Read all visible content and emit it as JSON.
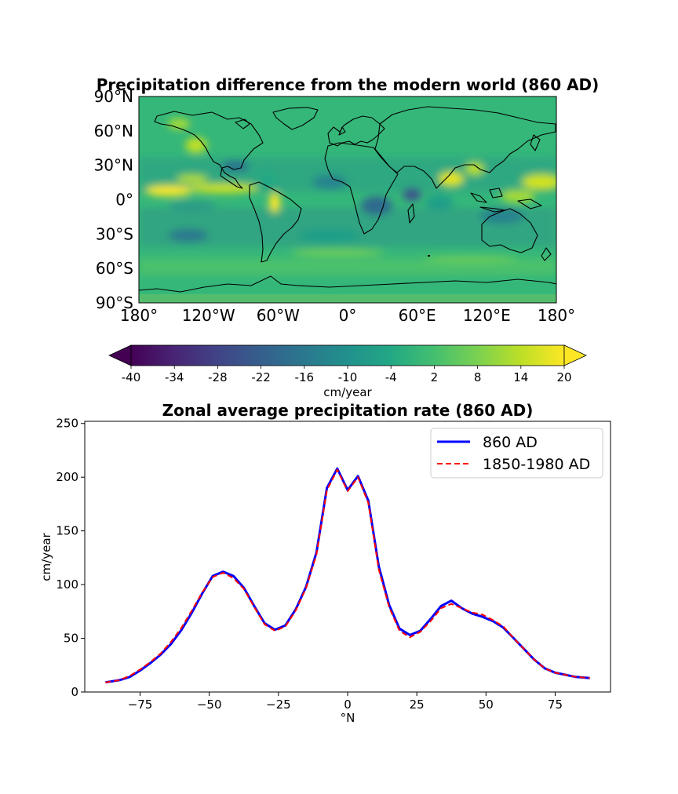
{
  "map": {
    "title": "Precipitation difference from the modern world (860 AD)",
    "lat_ticks": [
      "90°N",
      "60°N",
      "30°N",
      "0°",
      "30°S",
      "60°S",
      "90°S"
    ],
    "lon_ticks": [
      "180°",
      "120°W",
      "60°W",
      "0°",
      "60°E",
      "120°E",
      "180°"
    ],
    "colorbar": {
      "ticks": [
        "-40",
        "-34",
        "-28",
        "-22",
        "-16",
        "-10",
        "-4",
        "2",
        "8",
        "14",
        "20"
      ],
      "label": "cm/year",
      "range": [
        -40,
        20
      ],
      "colormap": "viridis",
      "extend": "both"
    }
  },
  "chart_data": {
    "type": "line",
    "title": "Zonal average precipitation rate (860 AD)",
    "xlabel": "°N",
    "ylabel": "cm/year",
    "xlim": [
      -95,
      95
    ],
    "ylim": [
      0,
      252
    ],
    "xticks": [
      -75,
      -50,
      -25,
      0,
      25,
      50,
      75
    ],
    "yticks": [
      0,
      50,
      100,
      150,
      200,
      250
    ],
    "legend_position": "top-right",
    "x": [
      -87.5,
      -82.5,
      -78.75,
      -75,
      -71.25,
      -67.5,
      -63.75,
      -60,
      -56.25,
      -52.5,
      -48.75,
      -45,
      -41.25,
      -37.5,
      -33.75,
      -30,
      -26.25,
      -22.5,
      -18.75,
      -15,
      -11.25,
      -7.5,
      -3.75,
      0,
      3.75,
      7.5,
      11.25,
      15,
      18.75,
      22.5,
      26.25,
      30,
      33.75,
      37.5,
      41.25,
      45,
      48.75,
      52.5,
      56.25,
      60,
      63.75,
      67.5,
      71.25,
      75,
      78.75,
      82.5,
      87.5
    ],
    "series": [
      {
        "name": "860 AD",
        "color": "#0000ff",
        "style": "solid",
        "values": [
          9,
          11,
          14,
          20,
          27,
          35,
          45,
          58,
          74,
          92,
          108,
          112,
          108,
          97,
          80,
          64,
          58,
          62,
          77,
          98,
          130,
          190,
          208,
          188,
          201,
          178,
          117,
          81,
          59,
          53,
          57,
          68,
          80,
          85,
          78,
          73,
          70,
          66,
          60,
          50,
          40,
          30,
          22,
          18,
          16,
          14,
          13
        ]
      },
      {
        "name": "1850-1980 AD",
        "color": "#ff0000",
        "style": "dashed",
        "values": [
          9,
          11,
          15,
          21,
          28,
          36,
          47,
          60,
          76,
          93,
          107,
          111,
          106,
          96,
          79,
          63,
          57,
          61,
          76,
          97,
          128,
          188,
          207,
          187,
          200,
          176,
          114,
          79,
          57,
          51,
          56,
          66,
          78,
          82,
          78,
          74,
          72,
          67,
          61,
          50,
          40,
          30,
          22,
          18,
          16,
          14,
          13
        ]
      }
    ]
  }
}
